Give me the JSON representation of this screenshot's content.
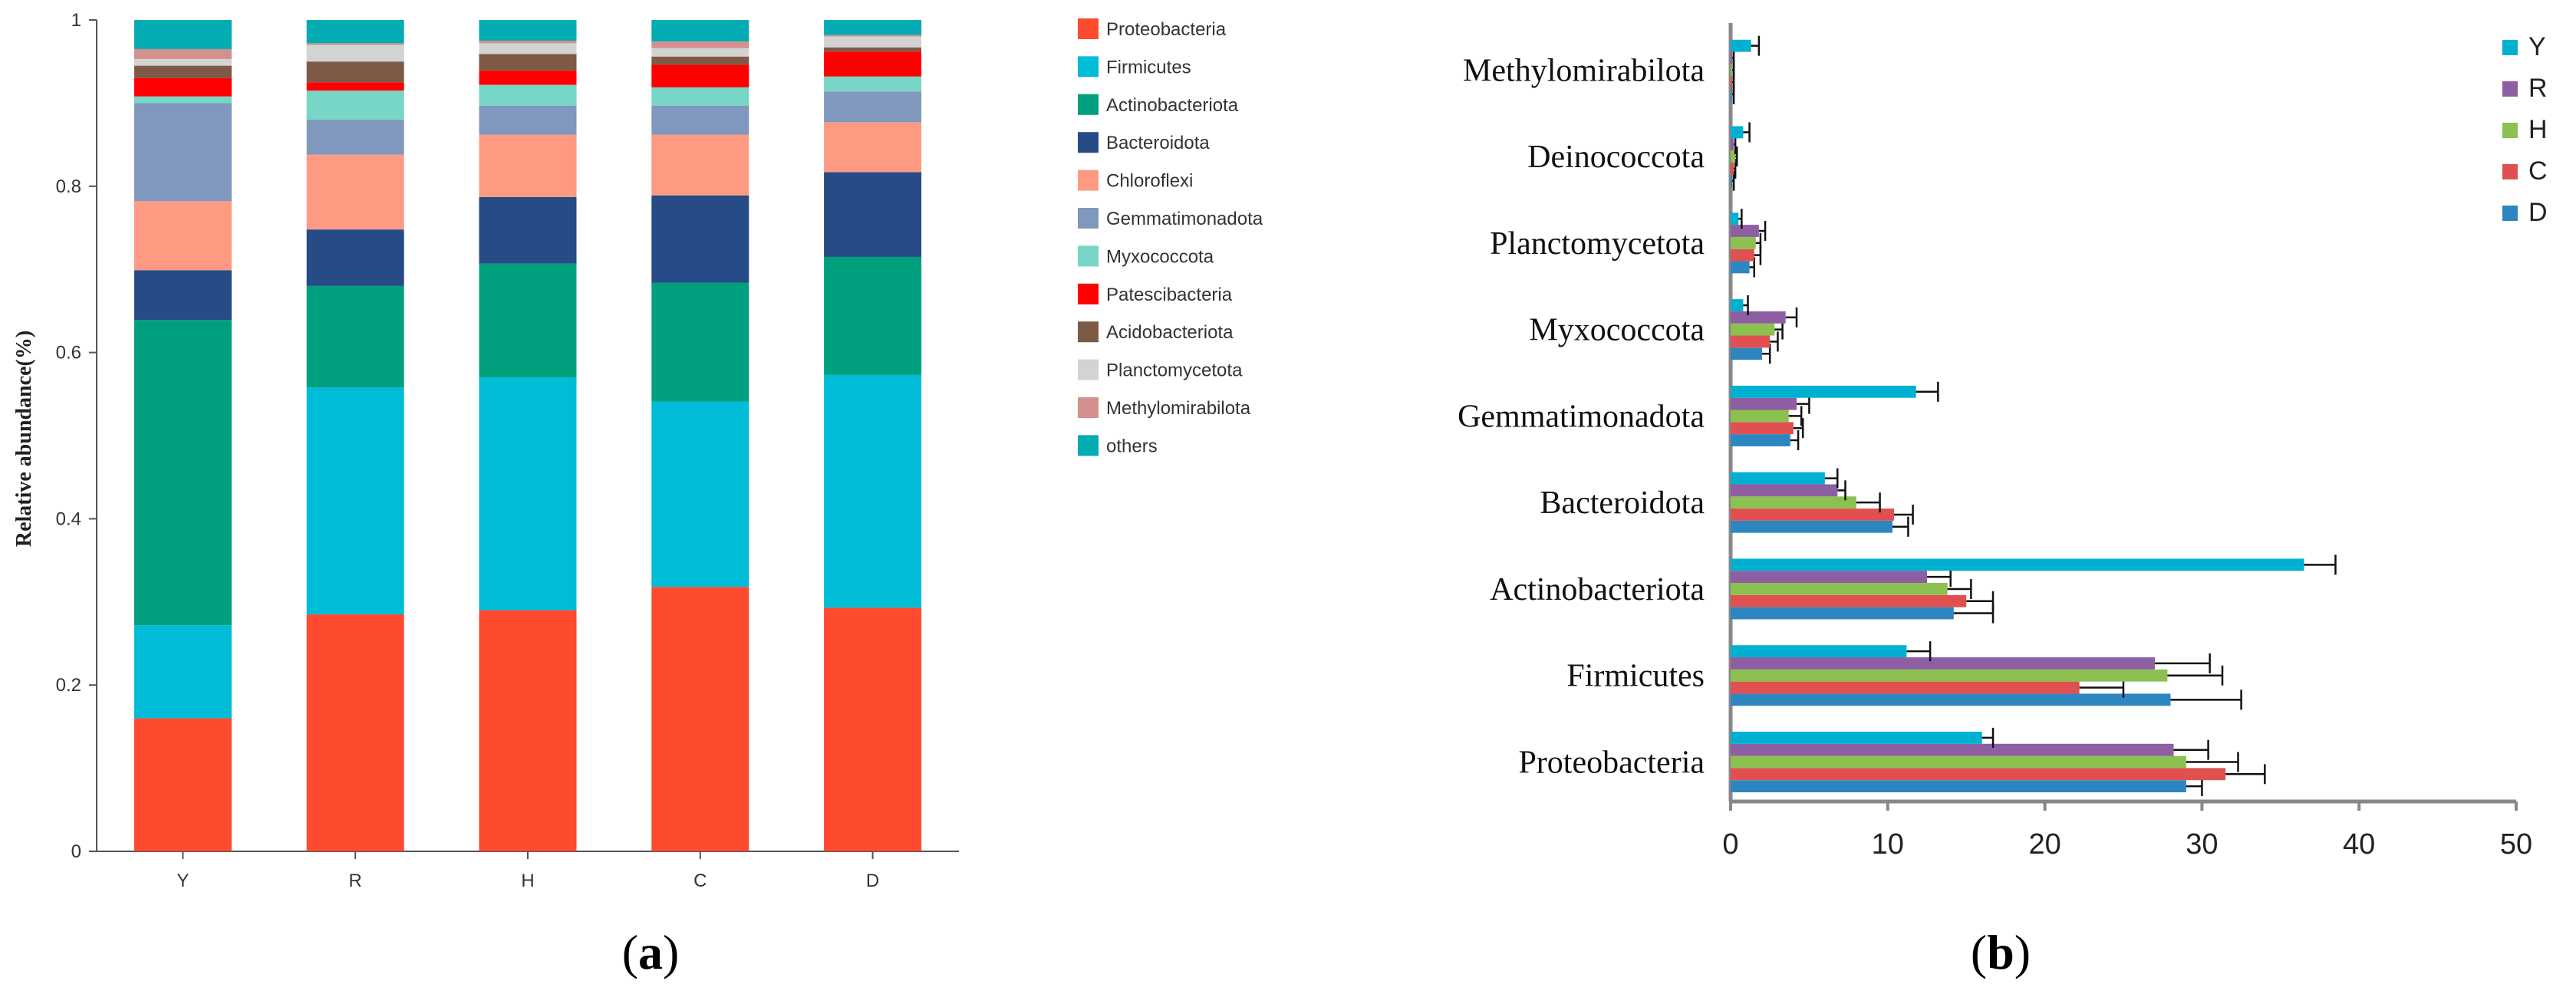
{
  "panels": {
    "a": {
      "label_open": "(",
      "label_letter": "a",
      "label_close": ")"
    },
    "b": {
      "label_open": "(",
      "label_letter": "b",
      "label_close": ")"
    }
  },
  "chart_data": [
    {
      "type": "bar",
      "stacked": true,
      "ylabel": "Relative abundance(%)",
      "ylim": [
        0,
        1
      ],
      "yticks": [
        "0",
        "0.2",
        "0.4",
        "0.6",
        "0.8",
        "1"
      ],
      "categories": [
        "Y",
        "R",
        "H",
        "C",
        "D"
      ],
      "legend_position": "right",
      "series": [
        {
          "name": "Proteobacteria",
          "color": "#fe4a2e",
          "values": [
            0.16,
            0.285,
            0.29,
            0.318,
            0.293
          ]
        },
        {
          "name": "Firmicutes",
          "color": "#00bcd6",
          "values": [
            0.112,
            0.273,
            0.28,
            0.223,
            0.28
          ]
        },
        {
          "name": "Actinobacteriota",
          "color": "#00a07e",
          "values": [
            0.367,
            0.122,
            0.137,
            0.143,
            0.142
          ]
        },
        {
          "name": "Bacteroidota",
          "color": "#274b87",
          "values": [
            0.06,
            0.068,
            0.08,
            0.105,
            0.102
          ]
        },
        {
          "name": "Chloroflexi",
          "color": "#fe9a82",
          "values": [
            0.083,
            0.09,
            0.075,
            0.073,
            0.06
          ]
        },
        {
          "name": "Gemmatimonadota",
          "color": "#8098bd",
          "values": [
            0.118,
            0.042,
            0.035,
            0.035,
            0.037
          ]
        },
        {
          "name": "Myxococcota",
          "color": "#77d6c5",
          "values": [
            0.008,
            0.035,
            0.025,
            0.022,
            0.018
          ]
        },
        {
          "name": "Patescibacteria",
          "color": "#ff0000",
          "values": [
            0.022,
            0.01,
            0.017,
            0.027,
            0.03
          ]
        },
        {
          "name": "Acidobacteriota",
          "color": "#7e5a46",
          "values": [
            0.015,
            0.025,
            0.02,
            0.01,
            0.005
          ]
        },
        {
          "name": "Planctomycetota",
          "color": "#d3d3d3",
          "values": [
            0.008,
            0.02,
            0.013,
            0.01,
            0.013
          ]
        },
        {
          "name": "Methylomirabilota",
          "color": "#d3908f",
          "values": [
            0.012,
            0.002,
            0.003,
            0.008,
            0.002
          ]
        },
        {
          "name": "others",
          "color": "#03abb2",
          "values": [
            0.035,
            0.028,
            0.025,
            0.026,
            0.018
          ]
        }
      ]
    },
    {
      "type": "bar",
      "orientation": "horizontal",
      "xlim": [
        0,
        50
      ],
      "xticks": [
        "0",
        "10",
        "20",
        "30",
        "40",
        "50"
      ],
      "categories": [
        "Proteobacteria",
        "Firmicutes",
        "Actinobacteriota",
        "Bacteroidota",
        "Gemmatimonadota",
        "Myxococcota",
        "Planctomycetota",
        "Deinococcota",
        "Methylomirabilota"
      ],
      "legend_position": "top-right",
      "legend_order": [
        "Y",
        "R",
        "H",
        "C",
        "D"
      ],
      "series": [
        {
          "name": "D",
          "color": "#2e86c1",
          "values": [
            29.0,
            28.0,
            14.2,
            10.3,
            3.8,
            2.0,
            1.2,
            0.1,
            0.1
          ],
          "errors": [
            1.0,
            4.5,
            2.5,
            1.0,
            0.5,
            0.5,
            0.3,
            0.1,
            0.1
          ]
        },
        {
          "name": "C",
          "color": "#e05050",
          "values": [
            31.5,
            22.2,
            15.0,
            10.4,
            4.0,
            2.5,
            1.5,
            0.2,
            0.1
          ],
          "errors": [
            2.5,
            2.8,
            1.7,
            1.2,
            0.6,
            0.5,
            0.4,
            0.1,
            0.1
          ]
        },
        {
          "name": "H",
          "color": "#8cc152",
          "values": [
            29.0,
            27.8,
            13.8,
            8.0,
            3.7,
            2.8,
            1.6,
            0.3,
            0.1
          ],
          "errors": [
            3.3,
            3.5,
            1.5,
            1.5,
            0.8,
            0.5,
            0.3,
            0.1,
            0.1
          ]
        },
        {
          "name": "R",
          "color": "#8e5ea2",
          "values": [
            28.2,
            27.0,
            12.5,
            6.8,
            4.2,
            3.5,
            1.8,
            0.2,
            0.1
          ],
          "errors": [
            2.2,
            3.5,
            1.5,
            0.5,
            0.8,
            0.7,
            0.4,
            0.1,
            0.1
          ]
        },
        {
          "name": "Y",
          "color": "#00b0d0",
          "values": [
            16.0,
            11.2,
            36.5,
            6.0,
            11.8,
            0.8,
            0.5,
            0.8,
            1.3
          ],
          "errors": [
            0.7,
            1.5,
            2.0,
            0.8,
            1.4,
            0.3,
            0.2,
            0.4,
            0.5
          ]
        }
      ]
    }
  ]
}
